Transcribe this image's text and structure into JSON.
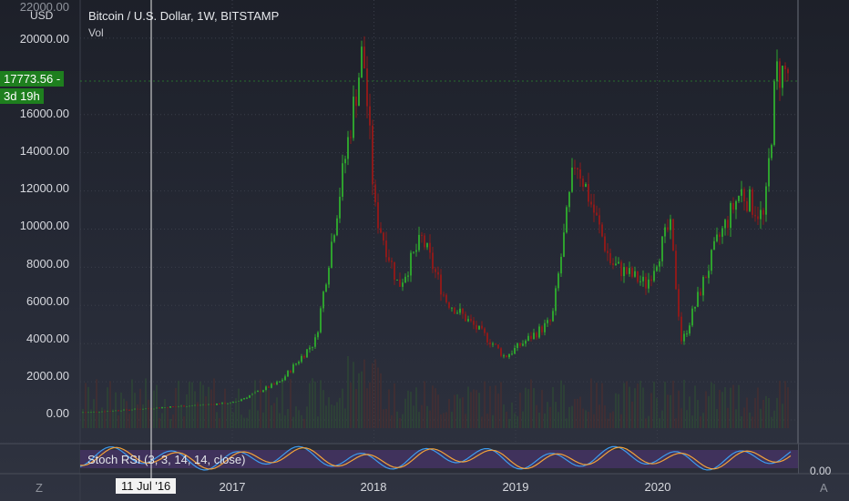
{
  "header": {
    "title": "Bitcoin / U.S. Dollar, 1W, BITSTAMP",
    "volume_label": "Vol",
    "currency": "USD"
  },
  "price_tag": {
    "price": "17773.56",
    "countdown": "3d 19h"
  },
  "indicator": {
    "label": "Stoch RSI (3, 3, 14, 14, close)",
    "axis_value": "0.00"
  },
  "crosshair": {
    "date": "11 Jul '16"
  },
  "corners": {
    "left": "Z",
    "right": "A"
  },
  "colors": {
    "up": "#2ea12e",
    "down": "#8c1a1a",
    "stoch_k": "#3d9cf0",
    "stoch_d": "#f2a23a",
    "tag": "#1e7f1e"
  },
  "chart_data": {
    "type": "candlestick",
    "y_axis": {
      "range": [
        -1000,
        22000
      ],
      "ticks": [
        "22000.00",
        "20000.00",
        "16000.00",
        "14000.00",
        "12000.00",
        "10000.00",
        "8000.00",
        "6000.00",
        "4000.00",
        "2000.00",
        "0.00"
      ]
    },
    "x_axis": {
      "ticks": [
        "2017",
        "2018",
        "2019",
        "2020"
      ]
    },
    "series": [
      {
        "weekly_close_trend": [
          {
            "date": "2016-01",
            "price": 420
          },
          {
            "date": "2016-07",
            "price": 660
          },
          {
            "date": "2017-01",
            "price": 900
          },
          {
            "date": "2017-05",
            "price": 2000
          },
          {
            "date": "2017-08",
            "price": 4200
          },
          {
            "date": "2017-12",
            "price": 19500
          },
          {
            "date": "2018-01",
            "price": 11000
          },
          {
            "date": "2018-03",
            "price": 7000
          },
          {
            "date": "2018-05",
            "price": 9500
          },
          {
            "date": "2018-07",
            "price": 6300
          },
          {
            "date": "2018-11",
            "price": 4000
          },
          {
            "date": "2018-12",
            "price": 3300
          },
          {
            "date": "2019-04",
            "price": 5200
          },
          {
            "date": "2019-06",
            "price": 13800
          },
          {
            "date": "2019-09",
            "price": 8200
          },
          {
            "date": "2019-12",
            "price": 7100
          },
          {
            "date": "2020-02",
            "price": 10200
          },
          {
            "date": "2020-03",
            "price": 4000
          },
          {
            "date": "2020-06",
            "price": 9300
          },
          {
            "date": "2020-08",
            "price": 12000
          },
          {
            "date": "2020-10",
            "price": 10500
          },
          {
            "date": "2020-11",
            "price": 18200
          }
        ]
      }
    ],
    "stoch_rsi": {
      "range": [
        0,
        100
      ]
    }
  }
}
